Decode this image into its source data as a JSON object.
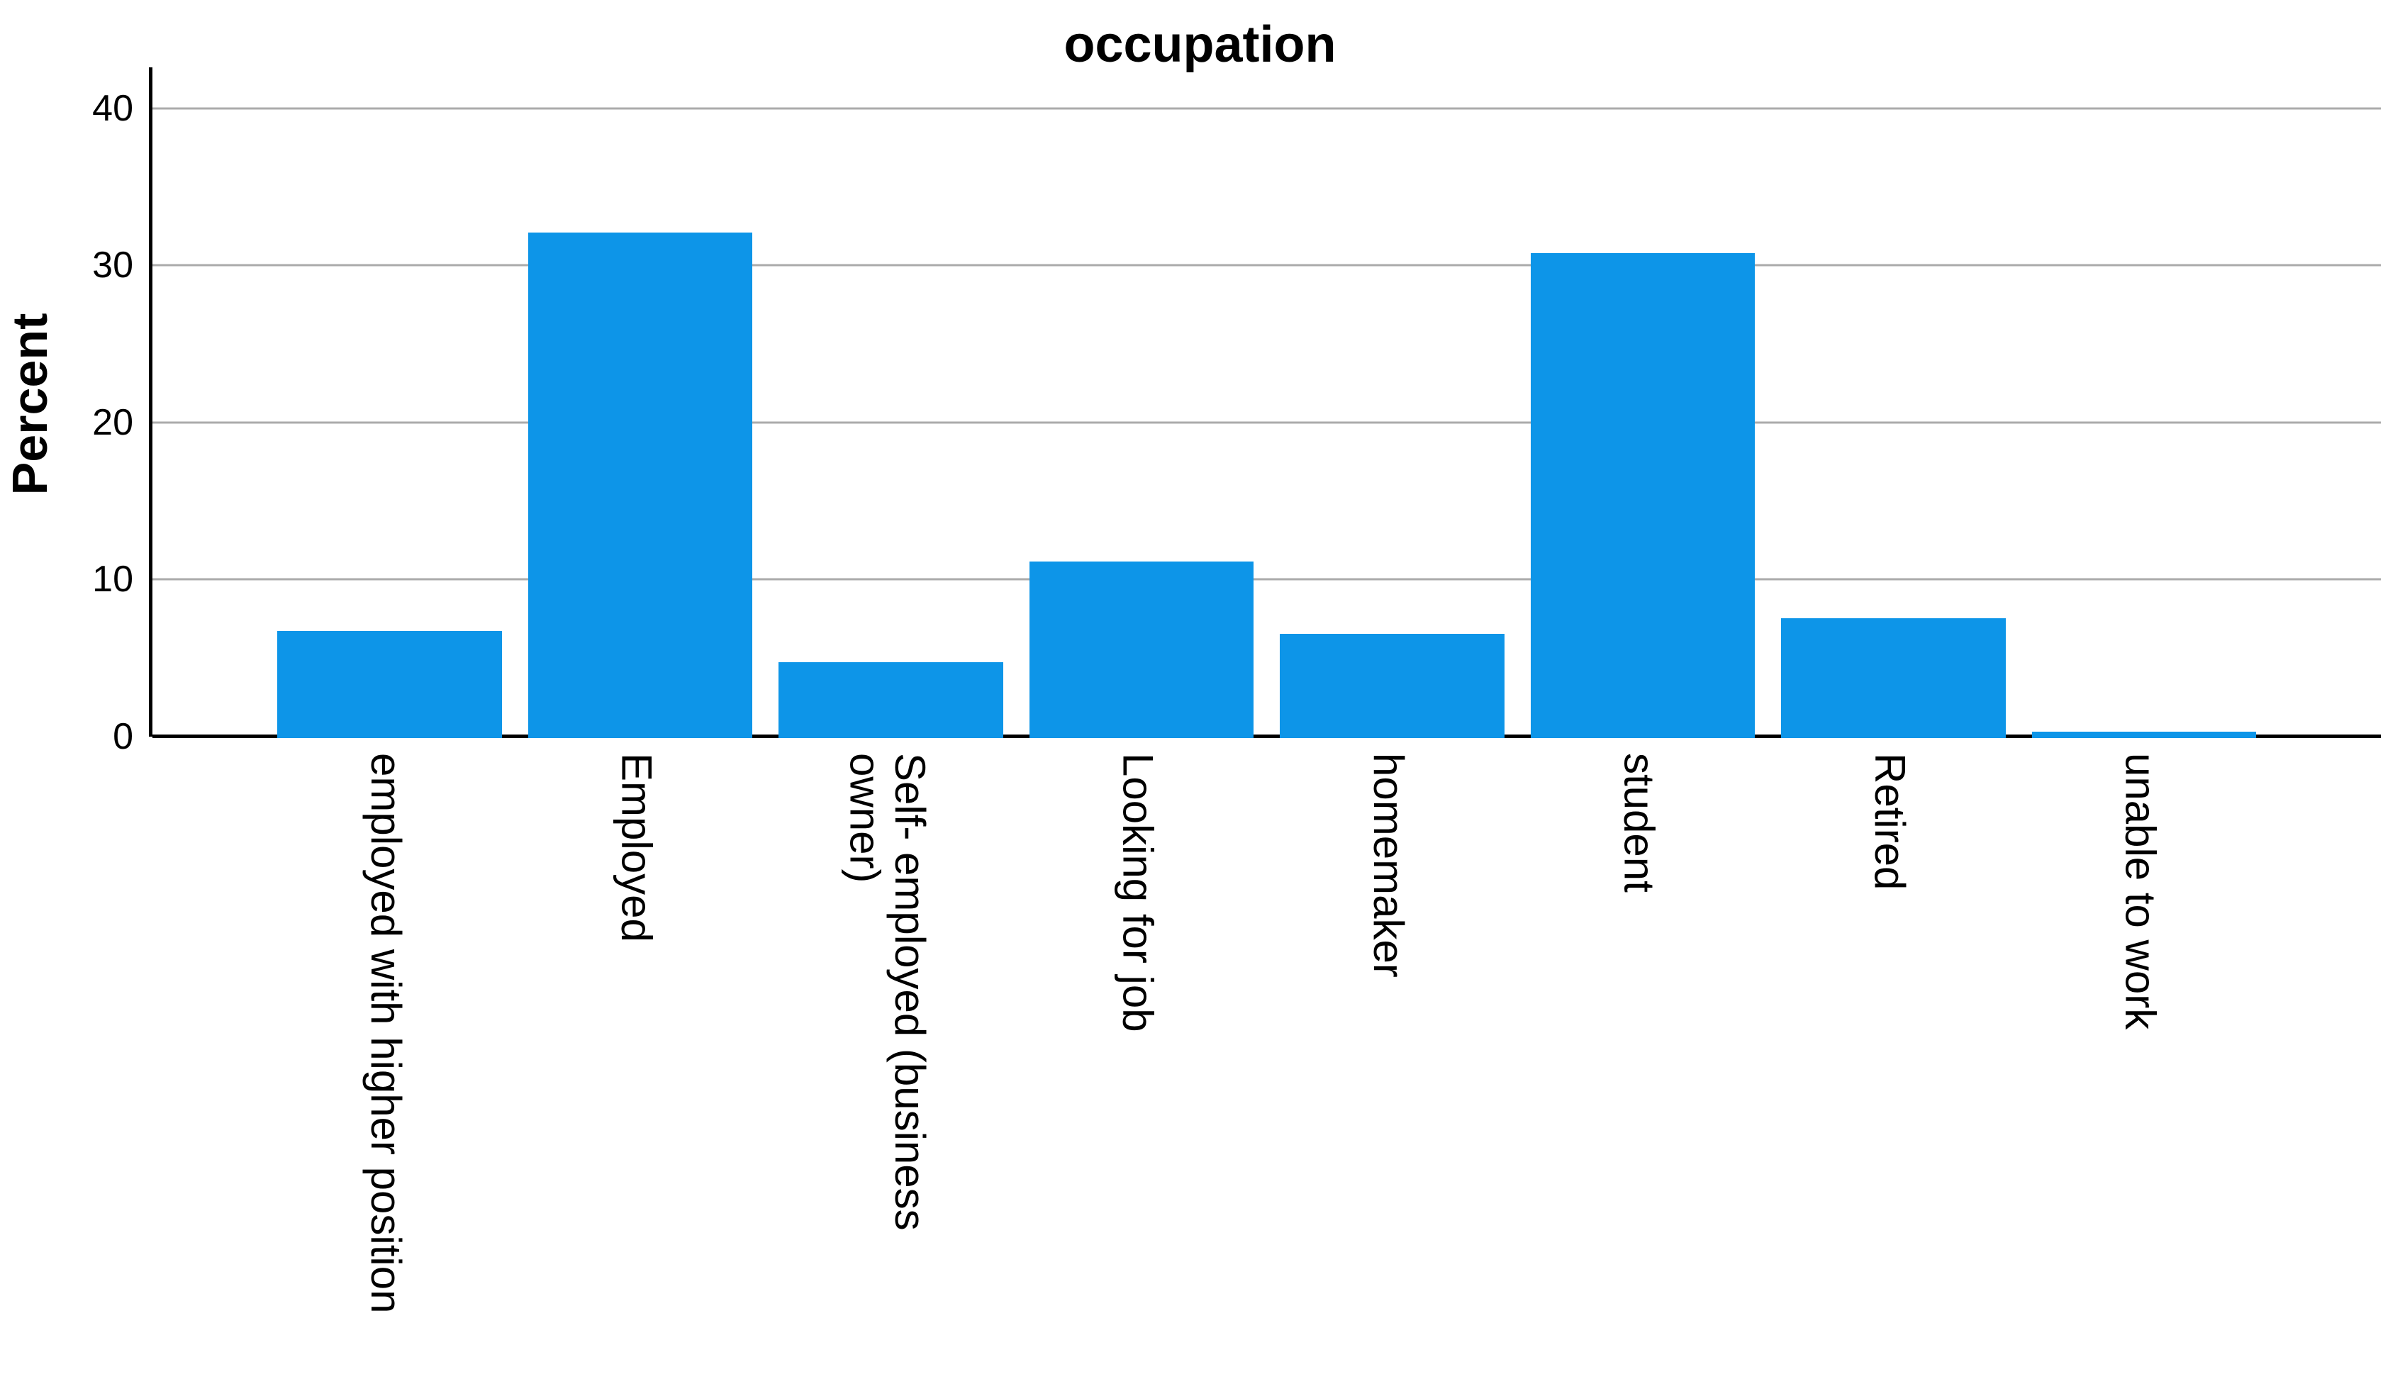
{
  "title": "occupation",
  "colors": {
    "bar": "#0D95E8",
    "gridline": "#ABABAB",
    "axis": "#000000",
    "text": "#000000",
    "background": "#FFFFFF"
  },
  "chart_data": {
    "type": "bar",
    "title": "occupation",
    "xlabel": "",
    "ylabel": "Percent",
    "categories": [
      "employed with higher position",
      "Employed",
      "Self- employed (business owner)",
      "Looking for job",
      "homemaker",
      "student",
      "Retired",
      "unable to work"
    ],
    "values": [
      6.8,
      32.1,
      4.8,
      11.2,
      6.6,
      30.8,
      7.6,
      0.4
    ],
    "yticks": [
      0,
      10,
      20,
      30,
      40
    ],
    "ylim": [
      0,
      42.6
    ],
    "grid": "horizontal-only",
    "legend": "none",
    "bar_orientation": "vertical",
    "category_label_rotation": "90deg-clockwise"
  }
}
